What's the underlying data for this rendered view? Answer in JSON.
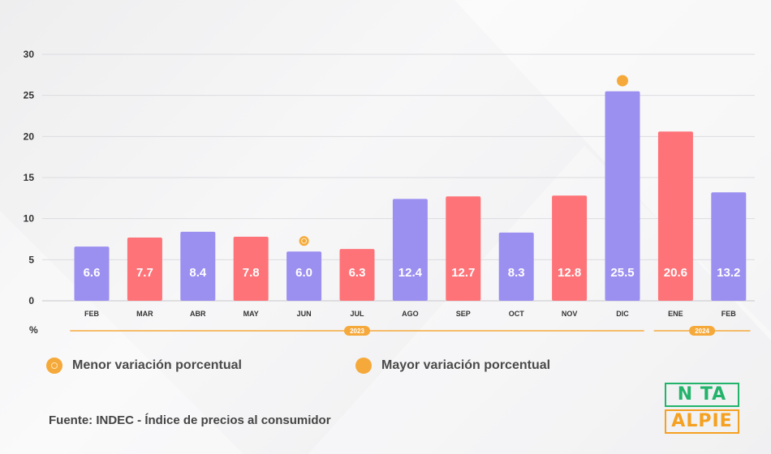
{
  "chart_data": {
    "type": "bar",
    "categories": [
      "FEB",
      "MAR",
      "ABR",
      "MAY",
      "JUN",
      "JUL",
      "AGO",
      "SEP",
      "OCT",
      "NOV",
      "DIC",
      "ENE",
      "FEB"
    ],
    "values": [
      6.6,
      7.7,
      8.4,
      7.8,
      6.0,
      6.3,
      12.4,
      12.7,
      8.3,
      12.8,
      25.5,
      20.6,
      13.2
    ],
    "bar_colors": [
      "#9b8ff0",
      "#fe7378",
      "#9b8ff0",
      "#fe7378",
      "#9b8ff0",
      "#fe7378",
      "#9b8ff0",
      "#fe7378",
      "#9b8ff0",
      "#fe7378",
      "#9b8ff0",
      "#fe7378",
      "#9b8ff0"
    ],
    "ylim": [
      0,
      30
    ],
    "yticks": [
      0,
      5,
      10,
      15,
      20,
      25,
      30
    ],
    "ylabel": "%",
    "grid": true,
    "years": [
      {
        "label": "2023",
        "from": 0,
        "to": 10
      },
      {
        "label": "2024",
        "from": 11,
        "to": 12
      }
    ],
    "markers": [
      {
        "type": "min",
        "index": 4
      },
      {
        "type": "max",
        "index": 10
      }
    ]
  },
  "legend": {
    "min_label": "Menor variación porcentual",
    "max_label": "Mayor variación porcentual"
  },
  "source": "Fuente: INDEC - Índice de precios al consumidor",
  "logo": {
    "top": "N TA",
    "bottom": "ALPIE"
  },
  "colors": {
    "purple": "#9b8ff0",
    "red": "#fe7378",
    "orange": "#f5a93a",
    "logo_green": "#24b36b",
    "logo_orange": "#f5a020"
  }
}
